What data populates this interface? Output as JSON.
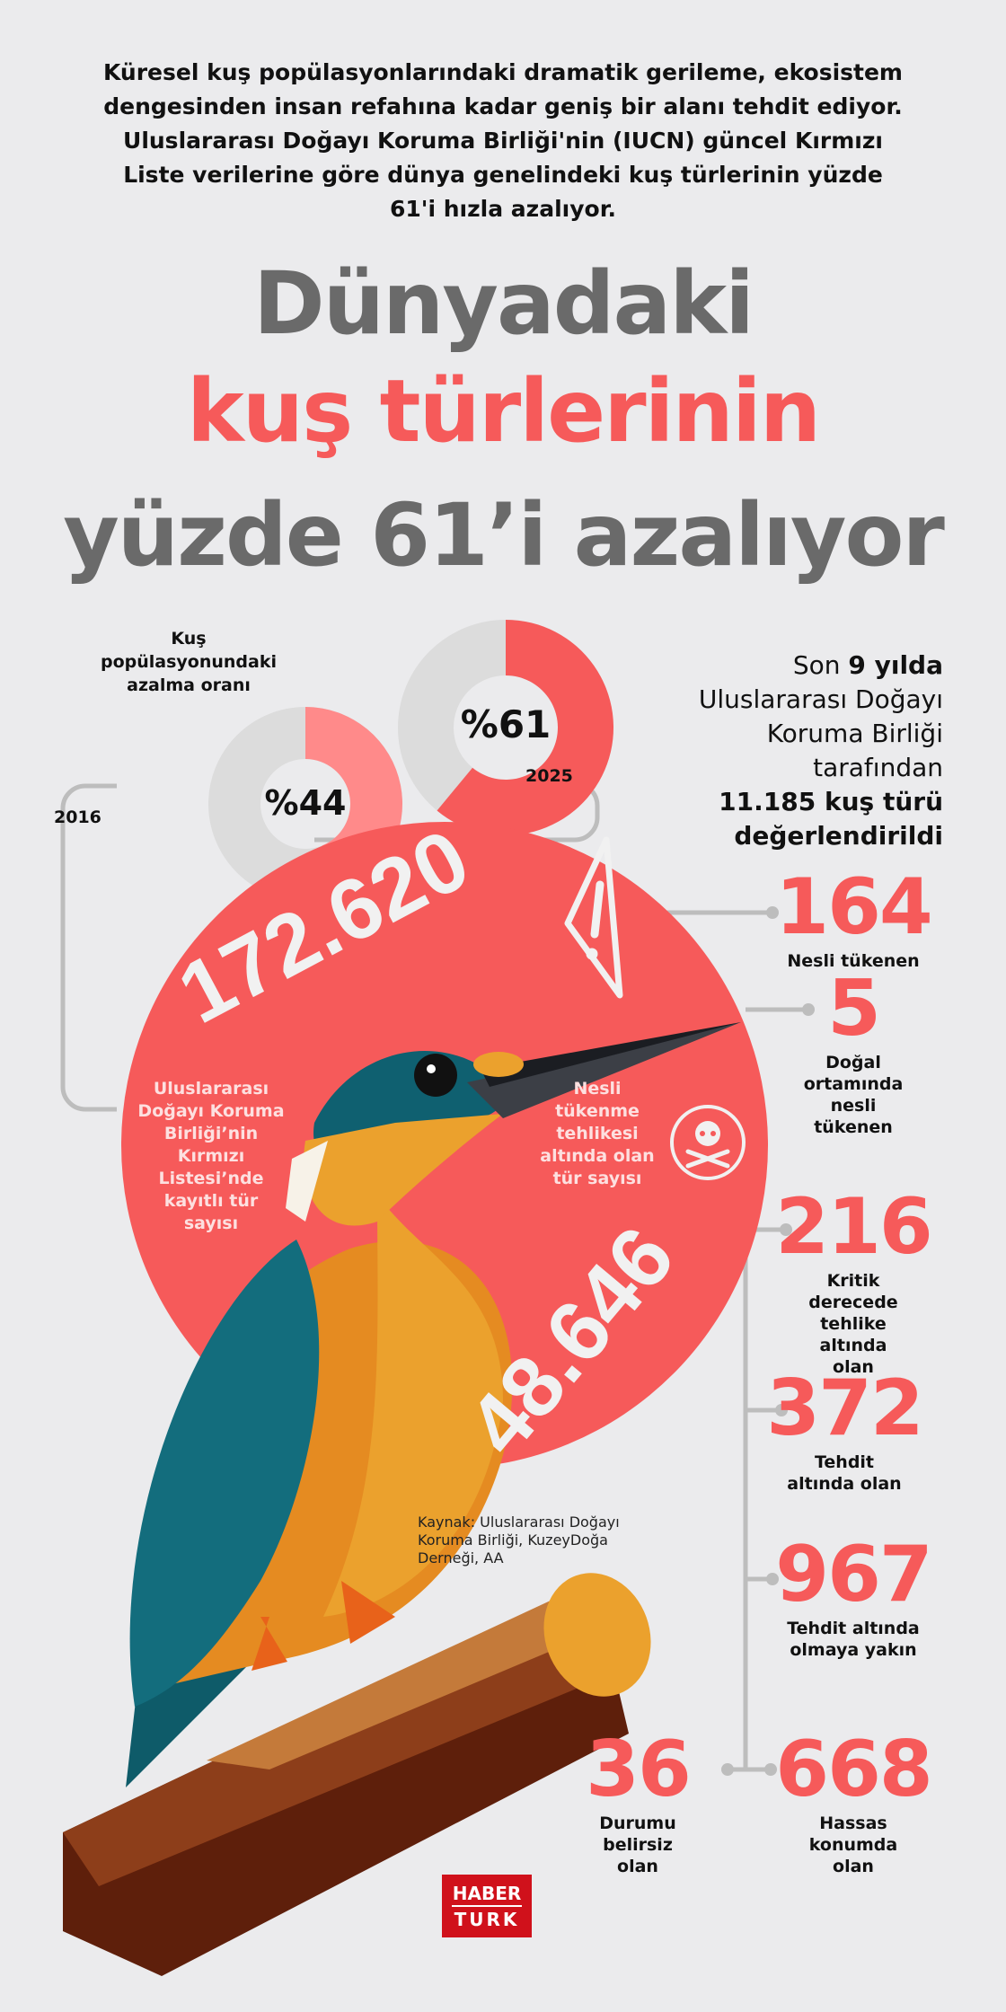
{
  "intro": "Küresel kuş popülasyonlarındaki dramatik gerileme, ekosistem dengesinden insan refahına kadar geniş bir alanı tehdit ediyor. Uluslararası Doğayı Koruma Birliği'nin (IUCN) güncel Kırmızı Liste verilerine göre dünya genelindeki kuş türlerinin yüzde 61'i hızla azalıyor.",
  "title": {
    "line1": "Dünyadaki",
    "line2": "kuş türlerinin",
    "line3": "yüzde 61’i azalıyor"
  },
  "donuts": {
    "label": "Kuş popülasyonundaki azalma oranı",
    "items": [
      {
        "year": "2016",
        "value_label": "%44",
        "percent": 44,
        "color": "#ff8a8a"
      },
      {
        "year": "2025",
        "value_label": "%61",
        "percent": 61,
        "color": "#f65a5a"
      }
    ]
  },
  "assessment": {
    "pre": "Son ",
    "bold1": "9 yılda",
    "mid": "Uluslararası Doğayı Koruma Birliği tarafından",
    "bold2": "11.185 kuş türü değerlendirildi"
  },
  "circle": {
    "total": "172.620",
    "total_label": "Uluslararası Doğayı Koruma Birliği’nin Kırmızı Listesi’nde kayıtlı tür sayısı",
    "threatened": "48.646",
    "threatened_label": "Nesli tükenme tehlikesi altında olan tür sayısı"
  },
  "stats": [
    {
      "value": "164",
      "label": "Nesli tükenen"
    },
    {
      "value": "5",
      "label": "Doğal ortamında nesli tükenen"
    },
    {
      "value": "216",
      "label": "Kritik derecede tehlike altında olan"
    },
    {
      "value": "372",
      "label": "Tehdit altında olan"
    },
    {
      "value": "967",
      "label": "Tehdit altında olmaya yakın"
    },
    {
      "value": "668",
      "label": "Hassas konumda olan"
    },
    {
      "value": "36",
      "label": "Durumu belirsiz olan"
    }
  ],
  "source": "Kaynak: Uluslararası Doğayı Koruma Birliği, KuzeyDoğa Derneği, AA",
  "logo": {
    "line1": "HABER",
    "line2": "TURK"
  },
  "colors": {
    "accent": "#f65a5a",
    "background": "#ebebed",
    "title_gray": "#6a6a6a",
    "logo_red": "#d0111b"
  }
}
